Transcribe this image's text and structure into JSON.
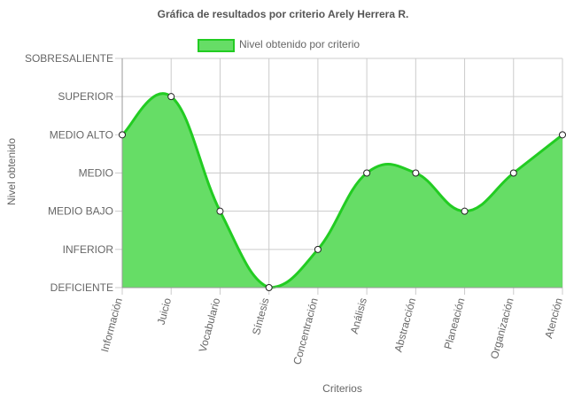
{
  "chart_data": {
    "type": "area",
    "title": "Gráfica de resultados por criterio Arely Herrera R.",
    "xlabel": "Criterios",
    "ylabel": "Nivel obtenido",
    "y_levels": [
      "DEFICIENTE",
      "INFERIOR",
      "MEDIO BAJO",
      "MEDIO",
      "MEDIO ALTO",
      "SUPERIOR",
      "SOBRESALIENTE"
    ],
    "ylim": [
      0,
      6
    ],
    "categories": [
      "Información",
      "Juicio",
      "Vocabulario",
      "Síntesis",
      "Concentración",
      "Análisis",
      "Abstracción",
      "Planeación",
      "Organización",
      "Atención"
    ],
    "series": [
      {
        "name": "Nivel obtenido por criterio",
        "values": [
          4,
          5,
          2,
          0,
          1,
          3,
          3,
          2,
          3,
          4
        ]
      }
    ],
    "grid": true,
    "legend": "top",
    "colors": {
      "fill": "#66dd66",
      "line": "#22cc22",
      "grid": "#cccccc",
      "point": "#ffffff"
    }
  }
}
